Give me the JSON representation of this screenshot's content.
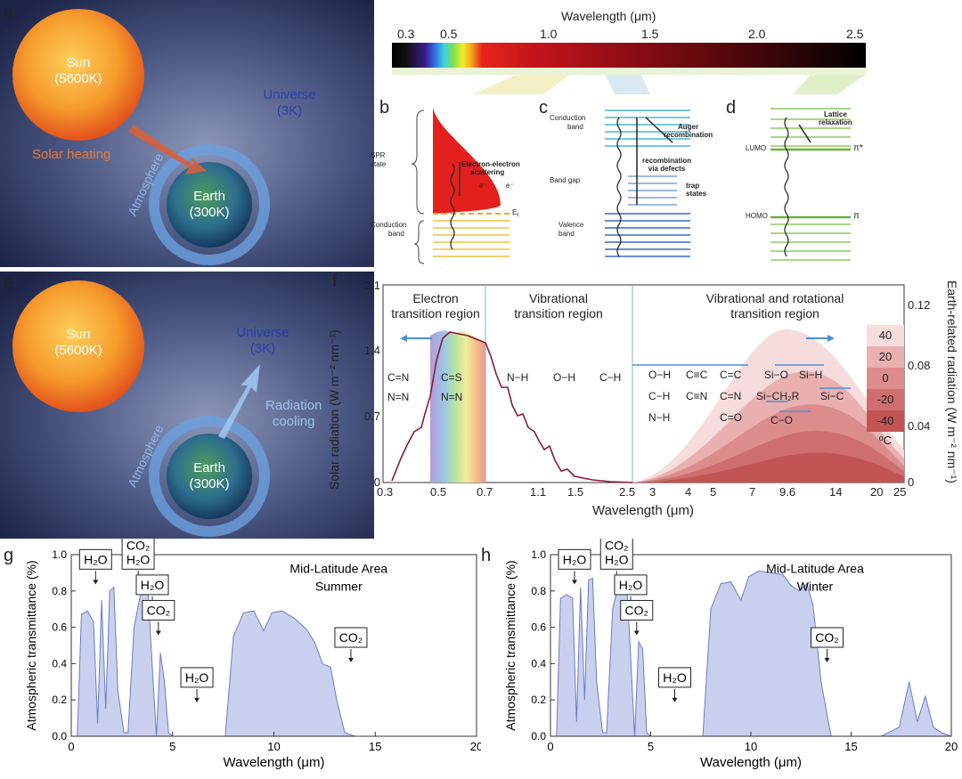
{
  "panel_labels": {
    "a": "a",
    "b": "b",
    "c": "c",
    "d": "d",
    "e": "e",
    "f": "f",
    "g": "g",
    "h": "h"
  },
  "panel_a": {
    "sun_name": "Sun",
    "sun_temp": "(5600K)",
    "universe_name": "Universe",
    "universe_temp": "(3K)",
    "earth_name": "Earth",
    "earth_temp": "(300K)",
    "atmosphere": "Atmosphere",
    "arrow_label": "Solar heating"
  },
  "panel_e": {
    "sun_name": "Sun",
    "sun_temp": "(5600K)",
    "universe_name": "Universe",
    "universe_temp": "(3K)",
    "earth_name": "Earth",
    "earth_temp": "(300K)",
    "atmosphere": "Atmosphere",
    "arrow_label_1": "Radiation",
    "arrow_label_2": "cooling"
  },
  "spectrum_bar": {
    "title": "Wavelength (μm)",
    "ticks": [
      "0.3",
      "0.5",
      "1.0",
      "1.5",
      "2.0",
      "2.5"
    ]
  },
  "panel_b": {
    "spr_1": "SPR",
    "spr_2": "state",
    "ee_1": "Electron-electron",
    "ee_2": "scattering",
    "e_left": "e⁻",
    "e_right": "e⁻",
    "fermi": "E",
    "fermi_sub": "f",
    "cb_1": "Conduction",
    "cb_2": "band"
  },
  "panel_c": {
    "cb_1": "Conduction",
    "cb_2": "band",
    "auger_1": "Auger",
    "auger_2": "recombination",
    "rec_1": "recombination",
    "rec_2": "via defects",
    "gap": "Band gap",
    "trap_1": "trap",
    "trap_2": "states",
    "vb_1": "Valence",
    "vb_2": "band"
  },
  "panel_d": {
    "lattice_1": "Lattice",
    "lattice_2": "relaxation",
    "lumo": "LUMO",
    "pi_star": "π*",
    "homo": "HOMO",
    "pi": "π"
  },
  "panel_f": {
    "region_1_a": "Electron",
    "region_1_b": "transition region",
    "region_2_a": "Vibrational",
    "region_2_b": "transition region",
    "region_3_a": "Vibrational and rotational",
    "region_3_b": "transition region",
    "xlabel": "Wavelength (μm)",
    "ylabel_left": "Solar radiation (W m⁻² nm⁻¹)",
    "ylabel_right": "Earth-related radiation (W m⁻² nm⁻¹)",
    "xticks": [
      "0.3",
      "0.5",
      "0.7",
      "1.1",
      "1.5",
      "2.5",
      "3",
      "4",
      "5",
      "7",
      "9.6",
      "14",
      "20",
      "25"
    ],
    "yticks_left": [
      "0",
      "0.7",
      "1.4",
      "2.1"
    ],
    "yticks_right": [
      "0",
      "0.04",
      "0.08",
      "0.12"
    ],
    "bonds": [
      "C=N",
      "C=S",
      "N=N",
      "N=N",
      "N−H",
      "O−H",
      "C−H",
      "O−H",
      "C≡C",
      "C=C",
      "Si−O",
      "Si−H",
      "C−H",
      "C≡N",
      "C=N",
      "Si−CH₂R",
      "Si−C",
      "N−H",
      "C=O",
      "C−O"
    ],
    "temp_legend": [
      "40",
      "20",
      "0",
      "-20",
      "-40"
    ],
    "temp_unit": "ºC",
    "temp_colors": [
      "#f6dcdc",
      "#eab0b0",
      "#dc8c8c",
      "#cf6e6e",
      "#c25454"
    ]
  },
  "chart_data": [
    {
      "type": "area",
      "title": "Mid-Latitude Area",
      "subtitle": "Summer",
      "xlabel": "Wavelength (μm)",
      "ylabel": "Atmospheric transmittance (%)",
      "xlim": [
        0,
        20
      ],
      "ylim": [
        0,
        1.0
      ],
      "xticks": [
        "0",
        "5",
        "10",
        "15",
        "20"
      ],
      "yticks": [
        "0.0",
        "0.2",
        "0.4",
        "0.6",
        "0.8",
        "1.0"
      ],
      "annotations": [
        "H₂O",
        "CO₂",
        "H₂O",
        "CO₂",
        "H₂O",
        "CO₂"
      ],
      "x": [
        0.3,
        0.5,
        0.8,
        1.1,
        1.3,
        1.5,
        1.7,
        1.9,
        2.1,
        2.3,
        2.6,
        2.8,
        3.1,
        3.4,
        3.6,
        3.8,
        4.0,
        4.2,
        4.4,
        4.6,
        4.8,
        5.0,
        5.3,
        7.6,
        8.0,
        8.5,
        9.0,
        9.5,
        9.9,
        10.4,
        11.0,
        11.6,
        12.0,
        12.4,
        12.8,
        13.1,
        13.5,
        14.0,
        20.0
      ],
      "y": [
        0.0,
        0.67,
        0.69,
        0.63,
        0.07,
        0.75,
        0.15,
        0.8,
        0.82,
        0.25,
        0.02,
        0.02,
        0.6,
        0.77,
        0.8,
        0.78,
        0.38,
        0.0,
        0.46,
        0.3,
        0.02,
        0.0,
        0.0,
        0.0,
        0.55,
        0.68,
        0.69,
        0.58,
        0.68,
        0.69,
        0.65,
        0.59,
        0.52,
        0.4,
        0.38,
        0.2,
        0.02,
        0.0,
        0.0
      ]
    },
    {
      "type": "area",
      "title": "Mid-Latitude Area",
      "subtitle": "Winter",
      "xlabel": "Wavelength (μm)",
      "ylabel": "Atmospheric transmittance (%)",
      "xlim": [
        0,
        20
      ],
      "ylim": [
        0,
        1.0
      ],
      "xticks": [
        "0",
        "5",
        "10",
        "15",
        "20"
      ],
      "yticks": [
        "0.0",
        "0.2",
        "0.4",
        "0.6",
        "0.8",
        "1.0"
      ],
      "annotations": [
        "H₂O",
        "CO₂",
        "H₂O",
        "CO₂",
        "H₂O",
        "CO₂"
      ],
      "x": [
        0.3,
        0.5,
        0.8,
        1.1,
        1.3,
        1.5,
        1.7,
        1.9,
        2.1,
        2.3,
        2.6,
        2.8,
        3.1,
        3.4,
        3.6,
        3.8,
        4.0,
        4.2,
        4.4,
        4.6,
        4.8,
        5.0,
        5.3,
        7.6,
        8.0,
        8.5,
        9.0,
        9.5,
        9.9,
        10.4,
        11.0,
        11.6,
        12.0,
        12.4,
        12.8,
        13.1,
        13.5,
        14.0,
        16.5,
        17.4,
        17.9,
        18.3,
        18.7,
        19.1,
        19.5,
        20.0
      ],
      "y": [
        0.0,
        0.76,
        0.78,
        0.76,
        0.08,
        0.82,
        0.2,
        0.86,
        0.87,
        0.3,
        0.02,
        0.02,
        0.7,
        0.84,
        0.88,
        0.85,
        0.44,
        0.0,
        0.52,
        0.48,
        0.02,
        0.0,
        0.0,
        0.0,
        0.7,
        0.84,
        0.85,
        0.75,
        0.88,
        0.91,
        0.9,
        0.89,
        0.83,
        0.8,
        0.84,
        0.72,
        0.3,
        0.0,
        0.0,
        0.05,
        0.3,
        0.08,
        0.22,
        0.05,
        0.02,
        0.0
      ]
    }
  ]
}
